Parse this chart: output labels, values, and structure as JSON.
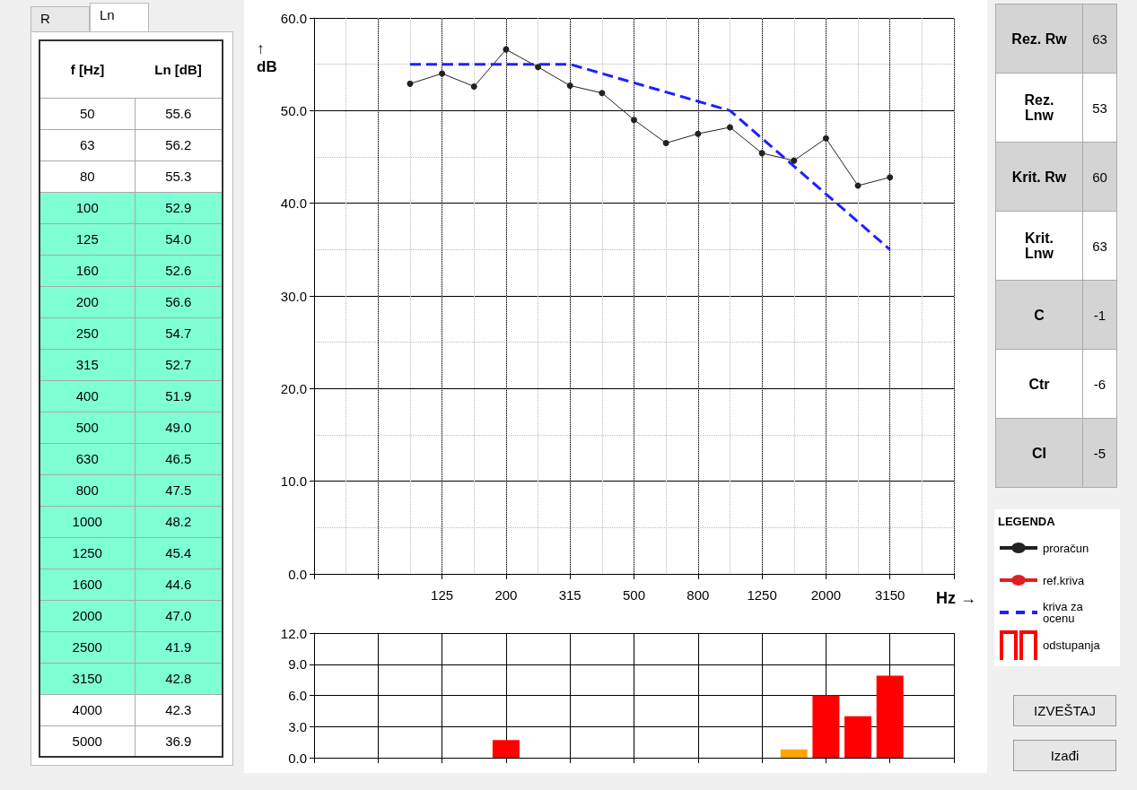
{
  "chart_data": [
    {
      "type": "other",
      "annotations": [
        "R",
        "Ln"
      ],
      "xlabel": "f [Hz]",
      "ylabel": "Ln [dB]",
      "categories": [
        "50",
        "63",
        "80",
        "100",
        "125",
        "160",
        "200",
        "250",
        "315",
        "400",
        "500",
        "630",
        "800",
        "1000",
        "1250",
        "1600",
        "2000",
        "2500",
        "3150",
        "4000",
        "5000"
      ],
      "value_labels": [
        "55.6",
        "56.2",
        "55.3",
        "52.9",
        "54.0",
        "52.6",
        "56.6",
        "54.7",
        "52.7",
        "51.9",
        "49.0",
        "46.5",
        "47.5",
        "48.2",
        "45.4",
        "44.6",
        "47.0",
        "41.9",
        "42.8",
        "42.3",
        "36.9"
      ],
      "colors": [
        "#ffffff",
        "#ffffff",
        "#ffffff",
        "#7fffd4",
        "#7fffd4",
        "#7fffd4",
        "#7fffd4",
        "#7fffd4",
        "#7fffd4",
        "#7fffd4",
        "#7fffd4",
        "#7fffd4",
        "#7fffd4",
        "#7fffd4",
        "#7fffd4",
        "#7fffd4",
        "#7fffd4",
        "#7fffd4",
        "#7fffd4",
        "#ffffff",
        "#ffffff"
      ]
    },
    {
      "type": "line",
      "xlabel": "Hz →",
      "ylabel": "↑\ndB",
      "legend_title": "LEGENDA",
      "legend": "right",
      "grid": true,
      "marker": "circle",
      "categories": [
        null,
        null,
        null,
        null,
        "125",
        null,
        "200",
        null,
        "315",
        null,
        "500",
        null,
        "800",
        null,
        "1250",
        null,
        "2000",
        null,
        "3150",
        null,
        null
      ],
      "ylim": [
        0,
        60
      ],
      "yticks": [
        {
          "value": 0,
          "label": "0.0"
        },
        {
          "value": 10,
          "label": "10.0"
        },
        {
          "value": 20,
          "label": "20.0"
        },
        {
          "value": 30,
          "label": "30.0"
        },
        {
          "value": 40,
          "label": "40.0"
        },
        {
          "value": 50,
          "label": "50.0"
        },
        {
          "value": 60,
          "label": "60.0"
        }
      ],
      "series": [
        {
          "name": "proračun",
          "color": "#222222",
          "values": [
            null,
            null,
            null,
            52.9,
            54.0,
            52.6,
            56.6,
            54.7,
            52.7,
            51.9,
            49.0,
            46.5,
            47.5,
            48.2,
            45.4,
            44.6,
            47.0,
            41.9,
            42.8,
            null,
            null
          ]
        },
        {
          "name": "ref.kriva",
          "color": "#e02020",
          "values": [
            null,
            null,
            null,
            null,
            null,
            null,
            null,
            null,
            null,
            null,
            null,
            null,
            null,
            null,
            null,
            null,
            null,
            null,
            null,
            null,
            null
          ]
        },
        {
          "name": "kriva za ocenu",
          "color": "#2020ff",
          "marker": "none",
          "line_style": "dashed",
          "values": [
            null,
            null,
            null,
            55,
            55,
            55,
            55,
            55,
            55,
            54,
            53,
            52,
            51,
            50,
            47,
            44,
            41,
            38,
            35,
            null,
            null
          ]
        }
      ]
    },
    {
      "type": "bar",
      "grid": true,
      "legend": "right",
      "tick_labels": "y",
      "categories": [
        null,
        null,
        null,
        null,
        null,
        null,
        null,
        null,
        null,
        null,
        null,
        null,
        null,
        null,
        null,
        null,
        null,
        null,
        null,
        null,
        null
      ],
      "ylim": [
        0,
        12
      ],
      "yticks": [
        {
          "value": 0,
          "label": "0.0"
        },
        {
          "value": 3,
          "label": "3.0"
        },
        {
          "value": 6,
          "label": "6.0"
        },
        {
          "value": 9,
          "label": "9.0"
        },
        {
          "value": 12,
          "label": "12.0"
        }
      ],
      "series": [
        {
          "name": "odstupanja",
          "color": "#ff0000",
          "colors": [
            null,
            null,
            null,
            null,
            null,
            null,
            "#ff0000",
            null,
            null,
            null,
            null,
            null,
            null,
            null,
            null,
            "#ffa500",
            "#ff0000",
            "#ff0000",
            "#ff0000",
            null,
            null
          ],
          "values": [
            null,
            null,
            null,
            null,
            null,
            null,
            1.7,
            null,
            null,
            null,
            null,
            null,
            null,
            null,
            null,
            0.8,
            6.0,
            4.0,
            7.9,
            null,
            null
          ]
        }
      ]
    },
    {
      "type": "other",
      "categories": [
        "Rez. Rw",
        "Rez. Lnw",
        "Krit. Rw",
        "Krit. Lnw",
        "C",
        "Ctr",
        "CI"
      ],
      "values": [
        63,
        53,
        60,
        63,
        -1,
        -6,
        -5
      ],
      "data_labels": true,
      "colors": [
        "#d4d4d4",
        "#ffffff",
        "#d4d4d4",
        "#ffffff",
        "#d4d4d4",
        "#ffffff",
        "#d4d4d4"
      ],
      "annotations": [
        "IZVEŠTAJ",
        "Izađi"
      ]
    }
  ]
}
